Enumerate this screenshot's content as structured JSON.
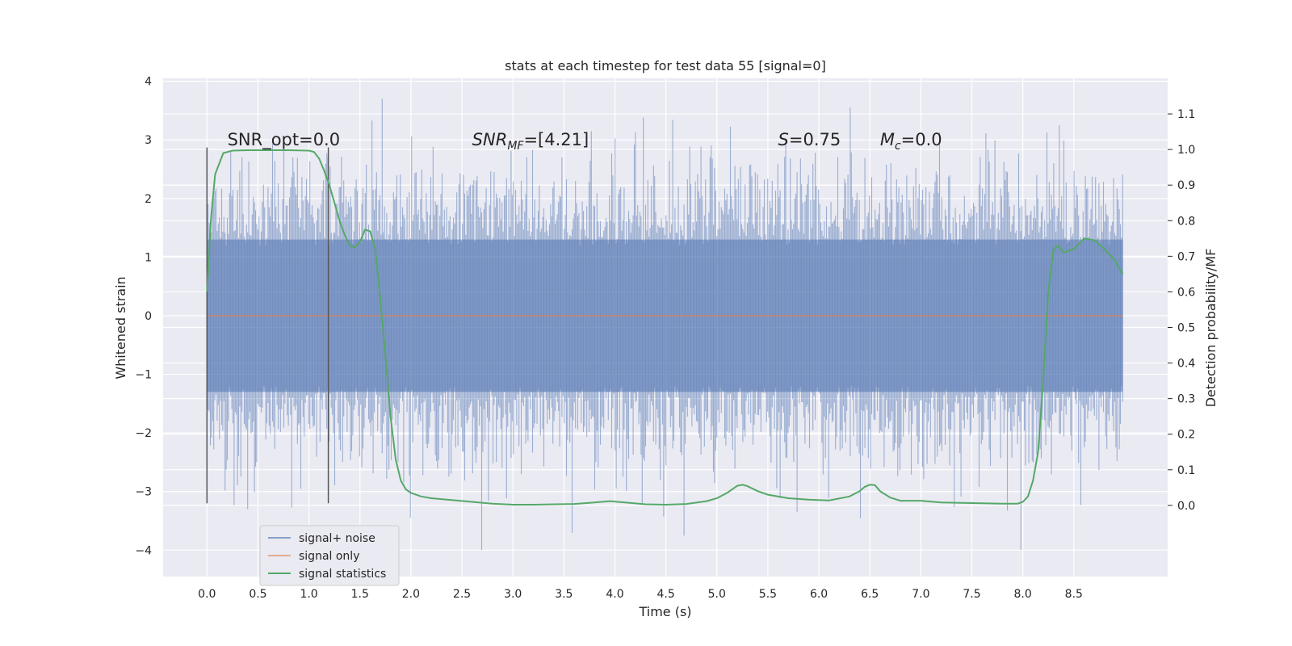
{
  "chart_data": {
    "type": "line",
    "title": "stats at each timestep for test data 55 [signal=0]",
    "xlabel": "Time (s)",
    "ylabel": "Whitened strain",
    "ylabel_right": "Detection probability/MF",
    "xlim": [
      -0.43,
      9.42
    ],
    "ylim": [
      -4.45,
      4.05
    ],
    "ylim_right": [
      -0.2,
      1.2
    ],
    "x_ticks": [
      0.0,
      0.5,
      1.0,
      1.5,
      2.0,
      2.5,
      3.0,
      3.5,
      4.0,
      4.5,
      5.0,
      5.5,
      6.0,
      6.5,
      7.0,
      7.5,
      8.0,
      8.5
    ],
    "x_tick_labels": [
      "0.0",
      "0.5",
      "1.0",
      "1.5",
      "2.0",
      "2.5",
      "3.0",
      "3.5",
      "4.0",
      "4.5",
      "5.0",
      "5.5",
      "6.0",
      "6.5",
      "7.0",
      "7.5",
      "8.0",
      "8.5"
    ],
    "y_ticks": [
      -4,
      -3,
      -2,
      -1,
      0,
      1,
      2,
      3,
      4
    ],
    "y_tick_labels": [
      "−4",
      "−3",
      "−2",
      "−1",
      "0",
      "1",
      "2",
      "3",
      "4"
    ],
    "y_right_ticks": [
      0.0,
      0.1,
      0.2,
      0.3,
      0.4,
      0.5,
      0.6,
      0.7,
      0.8,
      0.9,
      1.0,
      1.1
    ],
    "y_right_tick_labels": [
      "0.0",
      "0.1",
      "0.2",
      "0.3",
      "0.4",
      "0.5",
      "0.6",
      "0.7",
      "0.8",
      "0.9",
      "1.0",
      "1.1"
    ],
    "grid": true,
    "legend_position": "lower-left",
    "series": [
      {
        "name": "signal+ noise",
        "color": "#4c72b0",
        "axis": "left",
        "x_range": [
          0.0,
          8.98
        ],
        "typical_range": [
          -1.3,
          1.3
        ],
        "peak_extent": [
          -4.0,
          3.7
        ]
      },
      {
        "name": "signal only",
        "color": "#dd8452",
        "axis": "left",
        "x": [
          0.0,
          8.98
        ],
        "y": [
          0.0,
          0.0
        ]
      },
      {
        "name": "signal statistics",
        "color": "#55a868",
        "axis": "right",
        "x": [
          0.0,
          0.04,
          0.08,
          0.16,
          0.25,
          0.4,
          0.6,
          0.8,
          1.0,
          1.05,
          1.1,
          1.15,
          1.2,
          1.25,
          1.3,
          1.35,
          1.4,
          1.45,
          1.5,
          1.55,
          1.6,
          1.65,
          1.7,
          1.75,
          1.8,
          1.85,
          1.9,
          1.95,
          2.0,
          2.05,
          2.1,
          2.2,
          2.4,
          2.6,
          2.8,
          3.0,
          3.2,
          3.4,
          3.6,
          3.8,
          3.95,
          4.1,
          4.3,
          4.5,
          4.7,
          4.9,
          5.0,
          5.1,
          5.2,
          5.25,
          5.3,
          5.4,
          5.5,
          5.7,
          5.9,
          6.1,
          6.3,
          6.4,
          6.45,
          6.5,
          6.55,
          6.6,
          6.7,
          6.8,
          7.0,
          7.2,
          7.4,
          7.6,
          7.8,
          7.95,
          8.0,
          8.05,
          8.1,
          8.15,
          8.2,
          8.25,
          8.3,
          8.35,
          8.4,
          8.5,
          8.6,
          8.7,
          8.8,
          8.9,
          8.98
        ],
        "y": [
          0.6,
          0.81,
          0.93,
          0.99,
          0.997,
          0.998,
          0.998,
          0.998,
          0.997,
          0.993,
          0.975,
          0.94,
          0.9,
          0.85,
          0.8,
          0.76,
          0.73,
          0.725,
          0.74,
          0.775,
          0.77,
          0.72,
          0.58,
          0.42,
          0.25,
          0.13,
          0.07,
          0.045,
          0.035,
          0.03,
          0.025,
          0.02,
          0.015,
          0.01,
          0.005,
          0.002,
          0.002,
          0.003,
          0.004,
          0.008,
          0.012,
          0.008,
          0.003,
          0.002,
          0.004,
          0.012,
          0.02,
          0.035,
          0.055,
          0.058,
          0.054,
          0.04,
          0.03,
          0.02,
          0.016,
          0.014,
          0.025,
          0.04,
          0.052,
          0.058,
          0.057,
          0.04,
          0.022,
          0.013,
          0.013,
          0.008,
          0.007,
          0.006,
          0.005,
          0.005,
          0.01,
          0.025,
          0.07,
          0.15,
          0.35,
          0.6,
          0.72,
          0.73,
          0.71,
          0.72,
          0.75,
          0.745,
          0.72,
          0.69,
          0.65
        ]
      }
    ],
    "vlines": [
      {
        "x": 0.0,
        "ymin": -3.2,
        "ymax": 2.87
      },
      {
        "x": 1.19,
        "ymin": -3.2,
        "ymax": 2.87
      }
    ],
    "annotations": [
      {
        "text": "SNR_opt=0.0",
        "x": 0.2,
        "y": 3.0
      },
      {
        "text": "SNR",
        "sub": "MF",
        "suffix": "=[4.21]",
        "x": 2.6,
        "y": 3.0
      },
      {
        "text": "S",
        "suffix": "=0.75",
        "x": 5.6,
        "y": 3.0
      },
      {
        "text": "M",
        "sub": "c",
        "suffix": "=0.0",
        "x": 6.6,
        "y": 3.0
      }
    ]
  }
}
